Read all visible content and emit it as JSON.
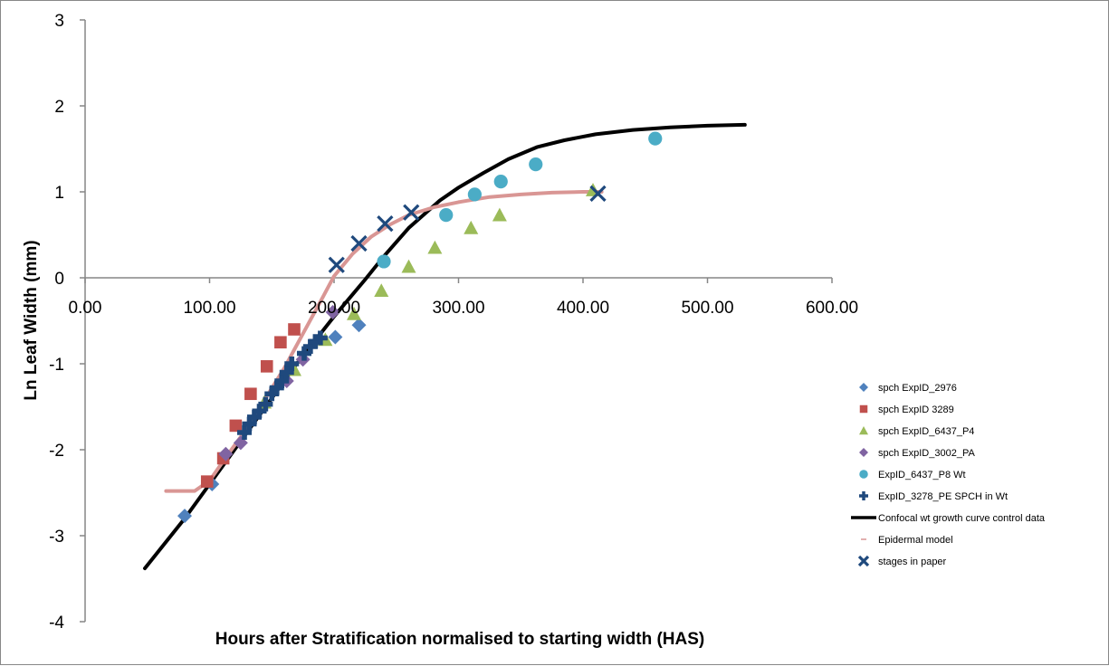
{
  "chart_data": {
    "type": "scatter",
    "title": "",
    "xlabel": "Hours after Stratification normalised to starting width (HAS)",
    "ylabel": "Ln Leaf Width (mm)",
    "xlim": [
      0,
      600
    ],
    "ylim": [
      -4,
      3
    ],
    "x_ticks": [
      {
        "value": 0,
        "label": "0.00"
      },
      {
        "value": 100,
        "label": "100.00"
      },
      {
        "value": 200,
        "label": "200.00"
      },
      {
        "value": 300,
        "label": "300.00"
      },
      {
        "value": 400,
        "label": "400.00"
      },
      {
        "value": 500,
        "label": "500.00"
      },
      {
        "value": 600,
        "label": "600.00"
      }
    ],
    "y_ticks": [
      {
        "value": 3,
        "label": "3"
      },
      {
        "value": 2,
        "label": "2"
      },
      {
        "value": 1,
        "label": "1"
      },
      {
        "value": 0,
        "label": "0"
      },
      {
        "value": -1,
        "label": "-1"
      },
      {
        "value": -2,
        "label": "-2"
      },
      {
        "value": -3,
        "label": "-3"
      },
      {
        "value": -4,
        "label": "-4"
      }
    ],
    "grid": false,
    "legend_position": "right",
    "series": [
      {
        "name": "spch ExpID_2976",
        "kind": "marker",
        "marker": "diamond",
        "color": "#4F81BD",
        "points": [
          [
            80,
            -2.77
          ],
          [
            102,
            -2.4
          ],
          [
            201,
            -0.69
          ],
          [
            220,
            -0.55
          ]
        ]
      },
      {
        "name": "spch ExpID 3289",
        "kind": "marker",
        "marker": "square",
        "color": "#C0504D",
        "points": [
          [
            98,
            -2.37
          ],
          [
            111,
            -2.1
          ],
          [
            121,
            -1.72
          ],
          [
            133,
            -1.35
          ],
          [
            146,
            -1.03
          ],
          [
            157,
            -0.75
          ],
          [
            168,
            -0.6
          ]
        ]
      },
      {
        "name": "spch ExpID_6437_P4",
        "kind": "marker",
        "marker": "triangle",
        "color": "#9BBB59",
        "points": [
          [
            144,
            -1.45
          ],
          [
            168,
            -1.07
          ],
          [
            193,
            -0.72
          ],
          [
            216,
            -0.42
          ],
          [
            238,
            -0.15
          ],
          [
            260,
            0.13
          ],
          [
            281,
            0.35
          ],
          [
            310,
            0.58
          ],
          [
            333,
            0.73
          ],
          [
            408,
            1.02
          ]
        ]
      },
      {
        "name": "spch ExpID_3002_PA",
        "kind": "marker",
        "marker": "diamond",
        "color": "#8064A2",
        "points": [
          [
            113,
            -2.05
          ],
          [
            125,
            -1.92
          ],
          [
            162,
            -1.2
          ],
          [
            175,
            -0.95
          ],
          [
            199,
            -0.4
          ]
        ]
      },
      {
        "name": "ExpID_6437_P8 Wt",
        "kind": "marker",
        "marker": "circle",
        "color": "#4BACC6",
        "points": [
          [
            240,
            0.19
          ],
          [
            290,
            0.73
          ],
          [
            313,
            0.97
          ],
          [
            334,
            1.12
          ],
          [
            362,
            1.32
          ],
          [
            458,
            1.62
          ]
        ]
      },
      {
        "name": "ExpID_3278_PE SPCH in Wt",
        "kind": "marker",
        "marker": "plus",
        "color": "#1F497D",
        "points": [
          [
            128,
            -1.8
          ],
          [
            132,
            -1.7
          ],
          [
            136,
            -1.62
          ],
          [
            140,
            -1.55
          ],
          [
            145,
            -1.47
          ],
          [
            150,
            -1.35
          ],
          [
            154,
            -1.28
          ],
          [
            158,
            -1.2
          ],
          [
            162,
            -1.1
          ],
          [
            166,
            -1.0
          ],
          [
            176,
            -0.88
          ],
          [
            181,
            -0.8
          ],
          [
            185,
            -0.74
          ],
          [
            189,
            -0.7
          ]
        ]
      },
      {
        "name": "Confocal wt growth curve control data",
        "kind": "line",
        "color": "#000000",
        "width": 4,
        "points": [
          [
            48,
            -3.38
          ],
          [
            80,
            -2.8
          ],
          [
            110,
            -2.2
          ],
          [
            140,
            -1.6
          ],
          [
            170,
            -1.0
          ],
          [
            200,
            -0.45
          ],
          [
            225,
            -0.02
          ],
          [
            240,
            0.25
          ],
          [
            260,
            0.58
          ],
          [
            285,
            0.9
          ],
          [
            300,
            1.05
          ],
          [
            320,
            1.22
          ],
          [
            340,
            1.38
          ],
          [
            363,
            1.52
          ],
          [
            385,
            1.6
          ],
          [
            410,
            1.67
          ],
          [
            440,
            1.72
          ],
          [
            470,
            1.75
          ],
          [
            500,
            1.77
          ],
          [
            530,
            1.78
          ]
        ]
      },
      {
        "name": "Epidermal model",
        "kind": "line",
        "color": "#D99694",
        "width": 4,
        "points": [
          [
            65,
            -2.48
          ],
          [
            88,
            -2.48
          ],
          [
            100,
            -2.36
          ],
          [
            115,
            -2.05
          ],
          [
            130,
            -1.75
          ],
          [
            145,
            -1.4
          ],
          [
            160,
            -1.05
          ],
          [
            175,
            -0.65
          ],
          [
            190,
            -0.25
          ],
          [
            200,
            0.02
          ],
          [
            215,
            0.28
          ],
          [
            230,
            0.48
          ],
          [
            245,
            0.62
          ],
          [
            260,
            0.73
          ],
          [
            280,
            0.82
          ],
          [
            300,
            0.88
          ],
          [
            325,
            0.94
          ],
          [
            350,
            0.97
          ],
          [
            375,
            0.99
          ],
          [
            400,
            1.0
          ],
          [
            415,
            1.0
          ]
        ]
      },
      {
        "name": "stages in paper",
        "kind": "marker",
        "marker": "x",
        "color": "#1F497D",
        "points": [
          [
            202,
            0.15
          ],
          [
            220,
            0.4
          ],
          [
            241,
            0.63
          ],
          [
            262,
            0.76
          ],
          [
            412,
            0.98
          ]
        ]
      }
    ]
  }
}
